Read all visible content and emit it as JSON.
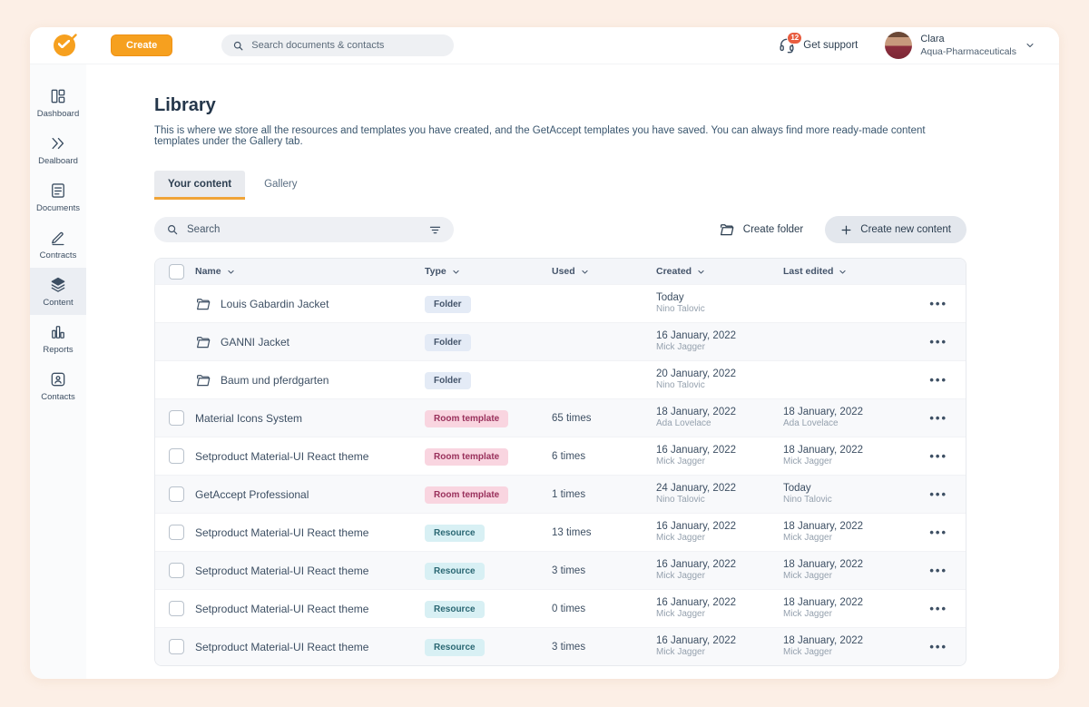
{
  "topbar": {
    "create_label": "Create",
    "search_placeholder": "Search documents & contacts",
    "support_label": "Get support",
    "support_badge": "12",
    "user_name": "Clara",
    "user_company": "Aqua-Pharmaceuticals"
  },
  "sidebar": {
    "items": [
      {
        "label": "Dashboard",
        "icon": "dashboard-icon",
        "active": false
      },
      {
        "label": "Dealboard",
        "icon": "dealboard-icon",
        "active": false
      },
      {
        "label": "Documents",
        "icon": "documents-icon",
        "active": false
      },
      {
        "label": "Contracts",
        "icon": "contracts-icon",
        "active": false
      },
      {
        "label": "Content",
        "icon": "content-icon",
        "active": true
      },
      {
        "label": "Reports",
        "icon": "reports-icon",
        "active": false
      },
      {
        "label": "Contacts",
        "icon": "contacts-icon",
        "active": false
      }
    ]
  },
  "page": {
    "title": "Library",
    "description": "This is where we store all the resources and templates you have created, and the GetAccept templates you have saved. You can always find more ready-made content templates under the Gallery tab.",
    "tabs": [
      {
        "label": "Your content",
        "active": true
      },
      {
        "label": "Gallery",
        "active": false
      }
    ],
    "search_placeholder": "Search",
    "create_folder_label": "Create folder",
    "create_content_label": "Create new content"
  },
  "table": {
    "columns": [
      "Name",
      "Type",
      "Used",
      "Created",
      "Last edited"
    ],
    "rows": [
      {
        "name": "Louis Gabardin Jacket",
        "type": "Folder",
        "used": "",
        "created": "Today",
        "created_by": "Nino Talovic",
        "edited": "",
        "edited_by": "",
        "is_folder": true
      },
      {
        "name": "GANNI Jacket",
        "type": "Folder",
        "used": "",
        "created": "16 January, 2022",
        "created_by": "Mick Jagger",
        "edited": "",
        "edited_by": "",
        "is_folder": true
      },
      {
        "name": "Baum und pferdgarten",
        "type": "Folder",
        "used": "",
        "created": "20 January, 2022",
        "created_by": "Nino Talovic",
        "edited": "",
        "edited_by": "",
        "is_folder": true
      },
      {
        "name": "Material Icons System",
        "type": "Room template",
        "used": "65 times",
        "created": "18 January, 2022",
        "created_by": "Ada Lovelace",
        "edited": "18 January, 2022",
        "edited_by": "Ada Lovelace",
        "is_folder": false
      },
      {
        "name": "Setproduct Material-UI React theme",
        "type": "Room template",
        "used": "6 times",
        "created": "16 January, 2022",
        "created_by": "Mick Jagger",
        "edited": "18 January, 2022",
        "edited_by": "Mick Jagger",
        "is_folder": false
      },
      {
        "name": "GetAccept Professional",
        "type": "Room template",
        "used": "1 times",
        "created": "24 January, 2022",
        "created_by": "Nino Talovic",
        "edited": "Today",
        "edited_by": "Nino Talovic",
        "is_folder": false
      },
      {
        "name": "Setproduct Material-UI React theme",
        "type": "Resource",
        "used": "13 times",
        "created": "16 January, 2022",
        "created_by": "Mick Jagger",
        "edited": "18 January, 2022",
        "edited_by": "Mick Jagger",
        "is_folder": false
      },
      {
        "name": "Setproduct Material-UI React theme",
        "type": "Resource",
        "used": "3 times",
        "created": "16 January, 2022",
        "created_by": "Mick Jagger",
        "edited": "18 January, 2022",
        "edited_by": "Mick Jagger",
        "is_folder": false
      },
      {
        "name": "Setproduct Material-UI React theme",
        "type": "Resource",
        "used": "0 times",
        "created": "16 January, 2022",
        "created_by": "Mick Jagger",
        "edited": "18 January, 2022",
        "edited_by": "Mick Jagger",
        "is_folder": false
      },
      {
        "name": "Setproduct Material-UI React theme",
        "type": "Resource",
        "used": "3 times",
        "created": "16 January, 2022",
        "created_by": "Mick Jagger",
        "edited": "18 January, 2022",
        "edited_by": "Mick Jagger",
        "is_folder": false
      }
    ]
  },
  "colors": {
    "frame_bg": "#FCEFE6",
    "accent": "#F6A01F",
    "tab_underline": "#F0A437",
    "support_badge": "#E85C3F",
    "thead_bg": "#F3F5F9",
    "alt_row": "#F8F9FB",
    "sidebar_active": "#EBEEF3",
    "badge_folder_bg": "#E4EBF6",
    "badge_folder_text": "#44546A",
    "badge_room_bg": "#F9D5E0",
    "badge_room_text": "#99305B",
    "badge_resource_bg": "#D8F0F4",
    "badge_resource_text": "#2A6773"
  }
}
